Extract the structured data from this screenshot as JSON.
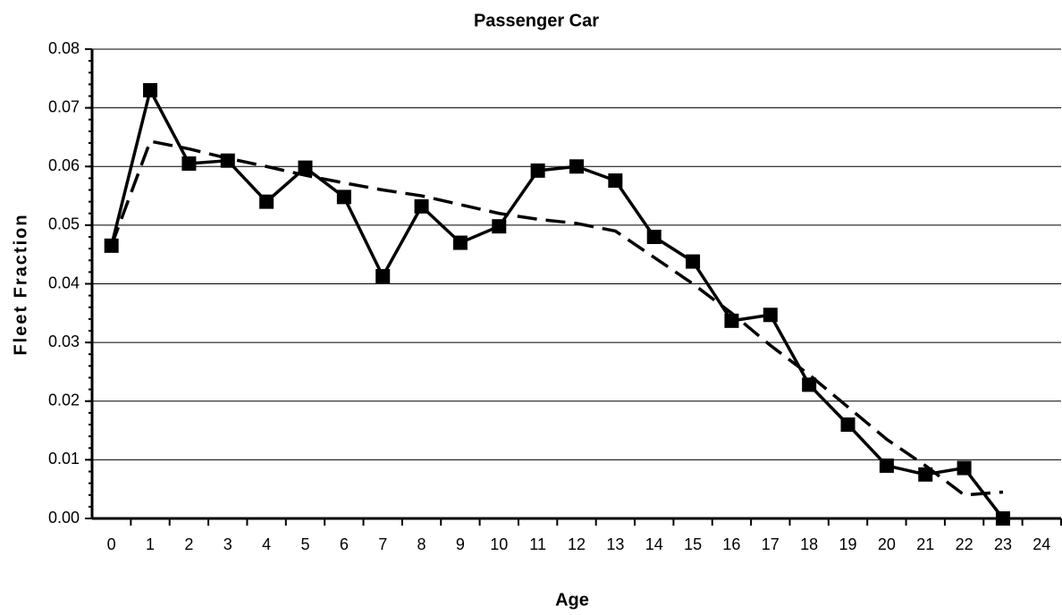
{
  "chart_data": {
    "type": "line",
    "title": "Passenger Car",
    "x_label": "Age",
    "y_label": "Fleet Fraction",
    "categories": [
      "0",
      "1",
      "2",
      "3",
      "4",
      "5",
      "6",
      "7",
      "8",
      "9",
      "10",
      "11",
      "12",
      "13",
      "14",
      "15",
      "16",
      "17",
      "18",
      "19",
      "20",
      "21",
      "22",
      "23",
      "24"
    ],
    "series": [
      {
        "color": "#000000",
        "style": "solid",
        "marker": "square",
        "values": [
          0.0465,
          0.073,
          0.0605,
          0.061,
          0.054,
          0.0598,
          0.0548,
          0.0413,
          0.0532,
          0.047,
          0.0498,
          0.0593,
          0.06,
          0.0576,
          0.048,
          0.0438,
          0.0337,
          0.0347,
          0.0228,
          0.016,
          0.009,
          0.0075,
          0.0086,
          0.0,
          null
        ]
      },
      {
        "color": "#000000",
        "style": "dashed",
        "values": [
          0.0465,
          0.0643,
          0.063,
          0.0614,
          0.06,
          0.0585,
          0.0572,
          0.056,
          0.055,
          0.0535,
          0.052,
          0.051,
          0.0503,
          0.049,
          0.0445,
          0.04,
          0.035,
          0.0295,
          0.0245,
          0.019,
          0.0135,
          0.009,
          0.004,
          0.0045,
          null
        ]
      }
    ],
    "ylim": [
      0,
      0.08
    ],
    "yticks": [
      {
        "value": 0,
        "label": "0.00"
      },
      {
        "value": 0.01,
        "label": "0.01"
      },
      {
        "value": 0.02,
        "label": "0.02"
      },
      {
        "value": 0.03,
        "label": "0.03"
      },
      {
        "value": 0.04,
        "label": "0.04"
      },
      {
        "value": 0.05,
        "label": "0.05"
      },
      {
        "value": 0.06,
        "label": "0.06"
      },
      {
        "value": 0.07,
        "label": "0.07"
      },
      {
        "value": 0.08,
        "label": "0.08"
      }
    ],
    "grid": true
  }
}
